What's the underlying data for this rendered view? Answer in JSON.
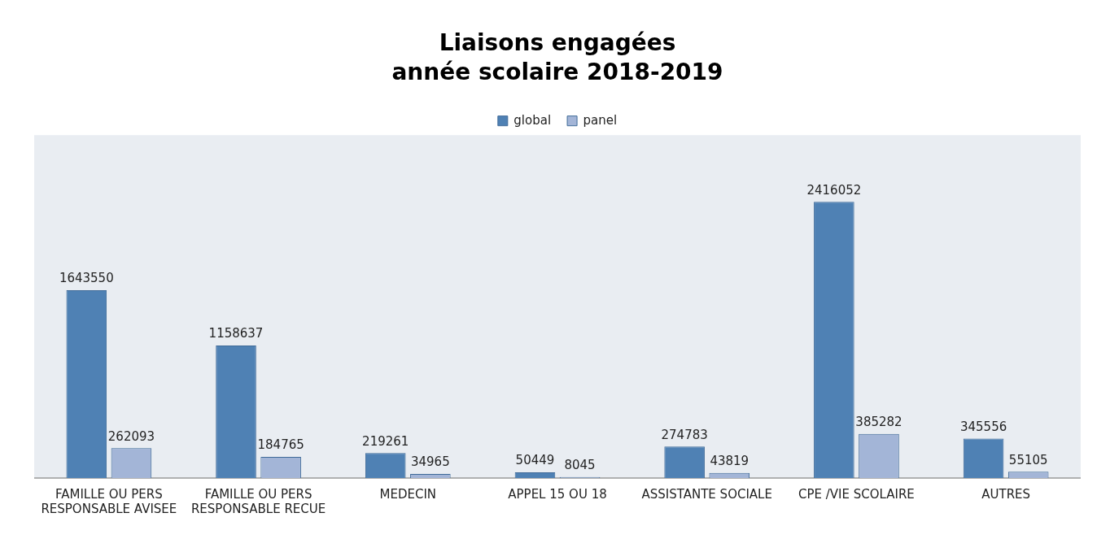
{
  "chart_data": {
    "type": "bar",
    "title": "Liaisons engagées",
    "subtitle": "année scolaire 2018-2019",
    "categories": [
      "FAMILLE OU PERS RESPONSABLE AVISEE",
      "FAMILLE OU PERS RESPONSABLE RECUE",
      "MEDECIN",
      "APPEL 15 OU 18",
      "ASSISTANTE SOCIALE",
      "CPE /VIE SCOLAIRE",
      "AUTRES"
    ],
    "series": [
      {
        "name": "global",
        "color": "#4f81b4",
        "values": [
          1643550,
          1158637,
          219261,
          50449,
          274783,
          2416052,
          345556
        ]
      },
      {
        "name": "panel",
        "color": "#a3b5d7",
        "values": [
          262093,
          184765,
          34965,
          8045,
          43819,
          385282,
          55105
        ]
      }
    ],
    "data_labels": true,
    "legend": "top",
    "grid": false
  }
}
